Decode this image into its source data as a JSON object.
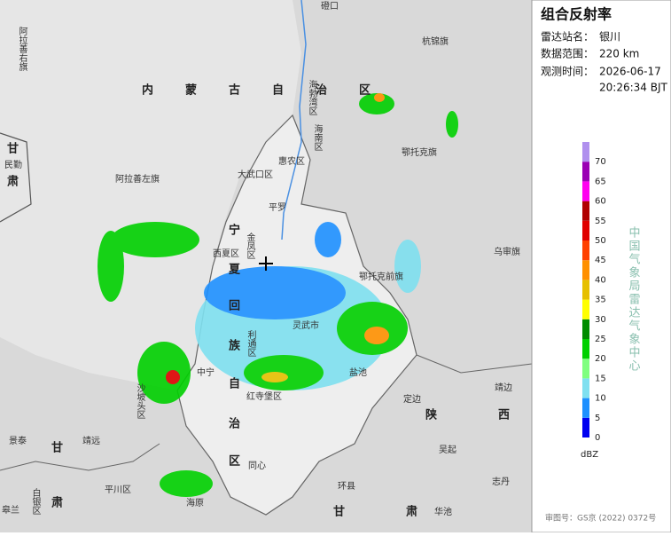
{
  "panel": {
    "title": "组合反射率",
    "station_label": "雷达站名：",
    "station": "银川",
    "range_label": "数据范围：",
    "range": "220 km",
    "time_label": "观测时间：",
    "date": "2026-06-17",
    "time": "20:26:34 BJT",
    "org": "中国气象局雷达气象中心",
    "approval": "审图号：GS京 (2022) 0372号"
  },
  "legend": {
    "unit": "dBZ",
    "lim": [
      0,
      75
    ],
    "ticks": [
      0,
      5,
      10,
      15,
      20,
      25,
      30,
      35,
      40,
      45,
      50,
      55,
      60,
      65,
      70
    ],
    "colors": [
      "#0000f0",
      "#1e90ff",
      "#7fe0f0",
      "#7fff7f",
      "#00d000",
      "#008c00",
      "#ffff00",
      "#e6c000",
      "#ff9000",
      "#ff4000",
      "#e00000",
      "#b00000",
      "#ff00f0",
      "#9a00b4",
      "#b090ee"
    ]
  },
  "map": {
    "labels": [
      "磴口",
      "阿拉善右旗",
      "杭锦旗",
      "内蒙古自治区",
      "海勃湾区",
      "海南区",
      "惠农区",
      "大武口区",
      "鄂托克旗",
      "阿拉善左旗",
      "甘",
      "民勤",
      "肃",
      "平罗",
      "宁",
      "夏",
      "回",
      "族",
      "自",
      "治",
      "区",
      "金凤区",
      "西夏区",
      "灵武市",
      "利通区",
      "盐池",
      "中宁",
      "红寺堡区",
      "定边",
      "陕",
      "西",
      "靖边",
      "吴起",
      "同心",
      "景泰",
      "靖远",
      "甘",
      "肃",
      "平川区",
      "白银区",
      "海原",
      "环县",
      "华池",
      "志丹",
      "乌审旗",
      "鄂托克前旗",
      "沙坡头区",
      "甘",
      "肃",
      "皋兰"
    ]
  }
}
